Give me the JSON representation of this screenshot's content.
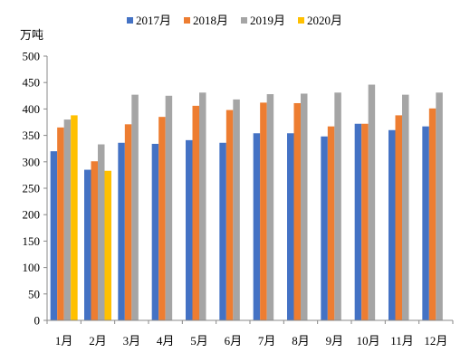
{
  "chart_data": {
    "type": "bar",
    "unit_label": "万吨",
    "categories": [
      "1月",
      "2月",
      "3月",
      "4月",
      "5月",
      "6月",
      "7月",
      "8月",
      "9月",
      "10月",
      "11月",
      "12月"
    ],
    "series": [
      {
        "name": "2017月",
        "color": "#4472c4",
        "values": [
          320,
          285,
          336,
          334,
          341,
          336,
          354,
          354,
          348,
          372,
          360,
          367
        ]
      },
      {
        "name": "2018月",
        "color": "#ed7d31",
        "values": [
          365,
          301,
          371,
          385,
          406,
          398,
          412,
          411,
          367,
          372,
          388,
          401
        ]
      },
      {
        "name": "2019月",
        "color": "#a5a5a5",
        "values": [
          380,
          333,
          427,
          425,
          431,
          418,
          428,
          429,
          431,
          446,
          427,
          431
        ]
      },
      {
        "name": "2020月",
        "color": "#ffc000",
        "values": [
          388,
          283,
          null,
          null,
          null,
          null,
          null,
          null,
          null,
          null,
          null,
          null
        ]
      }
    ],
    "ylim": [
      0,
      500
    ],
    "yticks": [
      0,
      50,
      100,
      150,
      200,
      250,
      300,
      350,
      400,
      450,
      500
    ],
    "grid": false,
    "legend_position": "top"
  }
}
